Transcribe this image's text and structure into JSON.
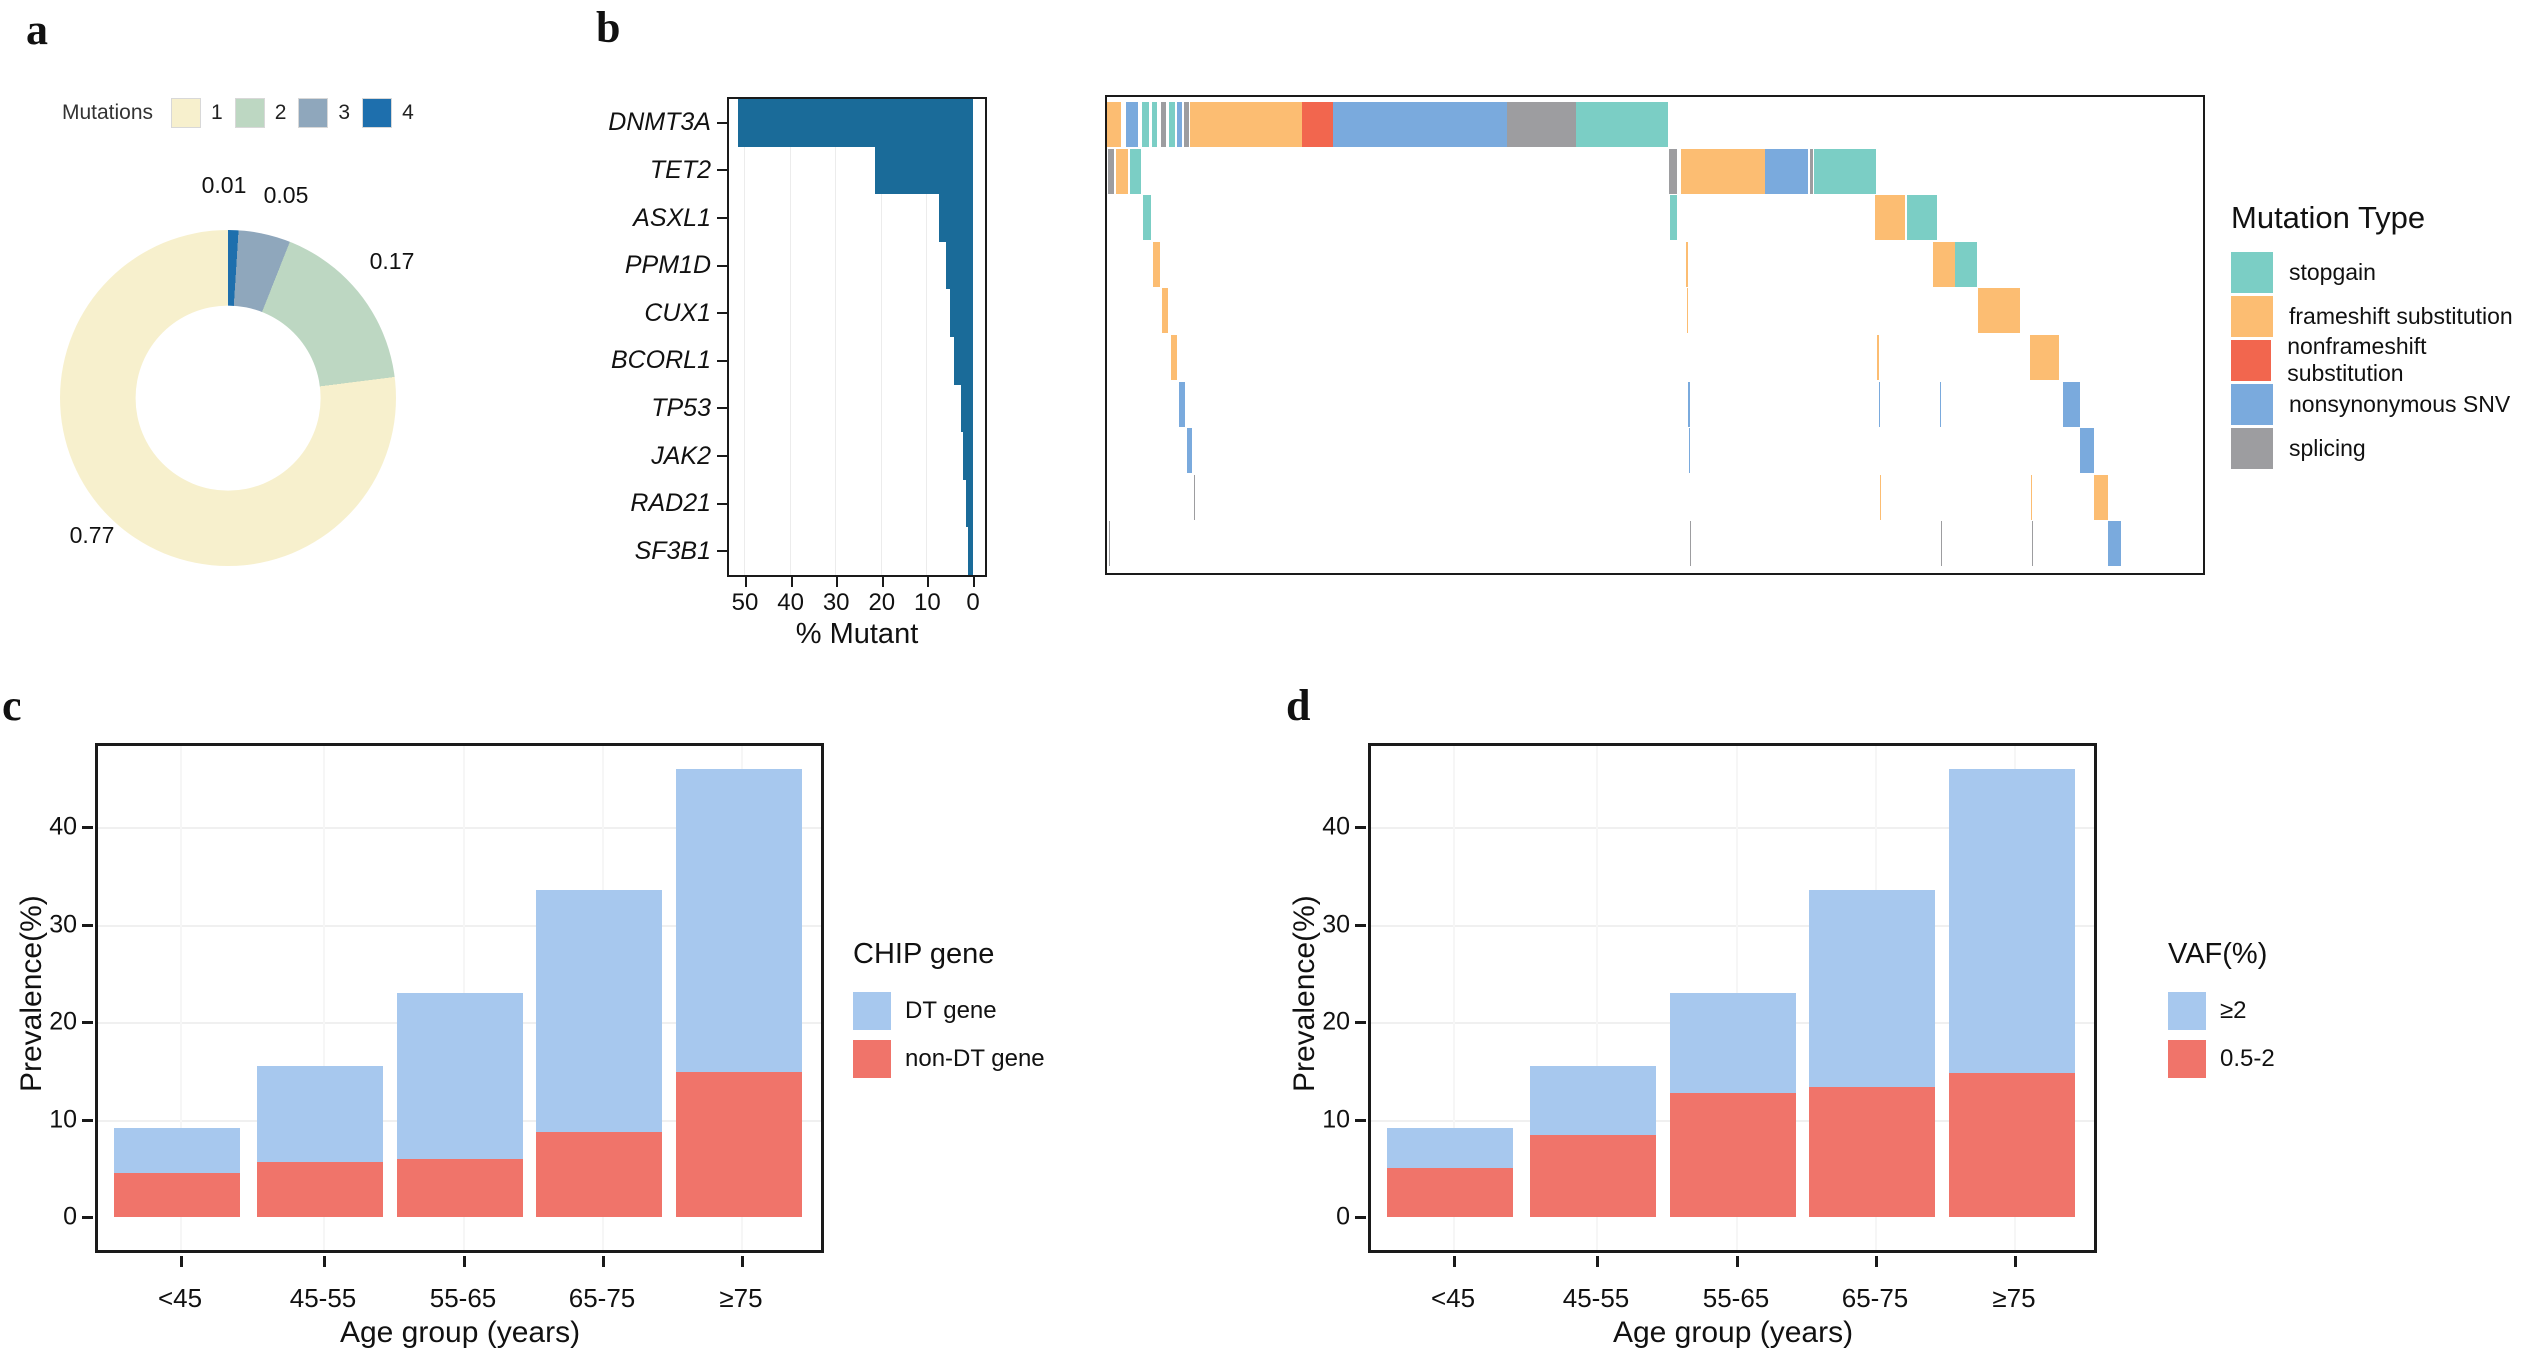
{
  "panel_labels": {
    "a": "a",
    "b": "b",
    "c": "c",
    "d": "d"
  },
  "panel_a": {
    "legend_title": "Mutations",
    "legend_items": [
      {
        "label": "1",
        "color": "#f7f0cd"
      },
      {
        "label": "2",
        "color": "#bdd7c2"
      },
      {
        "label": "3",
        "color": "#8fa7bc"
      },
      {
        "label": "4",
        "color": "#1e6fad"
      }
    ],
    "donut": {
      "slices": [
        {
          "label": "0.01",
          "value": 0.01,
          "color": "#1e6fad"
        },
        {
          "label": "0.05",
          "value": 0.05,
          "color": "#8fa7bc"
        },
        {
          "label": "0.17",
          "value": 0.17,
          "color": "#bdd7c2"
        },
        {
          "label": "0.77",
          "value": 0.77,
          "color": "#f7f0cd"
        }
      ]
    }
  },
  "panel_b": {
    "genes": [
      "DNMT3A",
      "TET2",
      "ASXL1",
      "PPM1D",
      "CUX1",
      "BCORL1",
      "TP53",
      "JAK2",
      "RAD21",
      "SF3B1"
    ],
    "pct_mutant": [
      51.5,
      21.5,
      7.5,
      6.0,
      5.0,
      4.2,
      2.7,
      2.1,
      1.5,
      1.2
    ],
    "x_ticks": [
      "50",
      "40",
      "30",
      "20",
      "10",
      "0"
    ],
    "x_tick_values": [
      50,
      40,
      30,
      20,
      10,
      0
    ],
    "x_label": "% Mutant",
    "bar_color": "#1a6b99",
    "legend_title": "Mutation Type",
    "legend_items": [
      {
        "key": "SG",
        "label": "stopgain",
        "color": "#7bcec5"
      },
      {
        "key": "FS",
        "label": "frameshift substitution",
        "color": "#fcbd72"
      },
      {
        "key": "NF",
        "label": "nonframeshift substitution",
        "color": "#f2664e"
      },
      {
        "key": "NS",
        "label": "nonsynonymous SNV",
        "color": "#7aaadd"
      },
      {
        "key": "SP",
        "label": "splicing",
        "color": "#9d9da0"
      }
    ],
    "oncoprint": {
      "colors": {
        "SG": "#7bcec5",
        "FS": "#fcbd72",
        "NF": "#f2664e",
        "NS": "#7aaadd",
        "SP": "#9d9da0"
      },
      "rows": [
        {
          "gene": "DNMT3A",
          "segs": [
            [
              0,
              1.3,
              "FS"
            ],
            [
              1.7,
              1.1,
              "NS"
            ],
            [
              3.2,
              0.6,
              "SG"
            ],
            [
              4.1,
              0.5,
              "SG"
            ],
            [
              4.9,
              0.5,
              "SP"
            ],
            [
              5.7,
              0.5,
              "SG"
            ],
            [
              6.4,
              0.4,
              "NS"
            ],
            [
              7.0,
              0.5,
              "SP"
            ],
            [
              7.6,
              10.2,
              "FS"
            ],
            [
              17.8,
              2.8,
              "NF"
            ],
            [
              20.6,
              15.9,
              "NS"
            ],
            [
              36.5,
              6.3,
              "SP"
            ],
            [
              42.8,
              8.4,
              "SG"
            ]
          ]
        },
        {
          "gene": "TET2",
          "segs": [
            [
              0.1,
              0.5,
              "SP"
            ],
            [
              0.8,
              1.1,
              "FS"
            ],
            [
              2.1,
              1.0,
              "SG"
            ],
            [
              51.3,
              0.7,
              "SP"
            ],
            [
              52.4,
              7.6,
              "FS"
            ],
            [
              60.0,
              4.0,
              "NS"
            ],
            [
              64.1,
              0.3,
              "SP"
            ],
            [
              64.5,
              5.7,
              "SG"
            ]
          ]
        },
        {
          "gene": "ASXL1",
          "segs": [
            [
              3.3,
              0.7,
              "SG"
            ],
            [
              51.4,
              0.6,
              "SG"
            ],
            [
              70.1,
              2.7,
              "FS"
            ],
            [
              73.0,
              2.7,
              "SG"
            ]
          ]
        },
        {
          "gene": "PPM1D",
          "segs": [
            [
              4.2,
              0.6,
              "FS"
            ],
            [
              52.8,
              0.2,
              "FS"
            ],
            [
              75.4,
              2.0,
              "FS"
            ],
            [
              77.4,
              2.0,
              "SG"
            ]
          ]
        },
        {
          "gene": "CUX1",
          "segs": [
            [
              5.0,
              0.6,
              "FS"
            ],
            [
              52.9,
              0.12,
              "FS"
            ],
            [
              79.5,
              3.8,
              "FS"
            ]
          ]
        },
        {
          "gene": "BCORL1",
          "segs": [
            [
              5.8,
              0.6,
              "FS"
            ],
            [
              70.3,
              0.15,
              "FS"
            ],
            [
              84.2,
              2.7,
              "FS"
            ]
          ]
        },
        {
          "gene": "TP53",
          "segs": [
            [
              6.6,
              0.5,
              "NS"
            ],
            [
              53.0,
              0.15,
              "NS"
            ],
            [
              70.4,
              0.1,
              "NS"
            ],
            [
              76.0,
              0.1,
              "NS"
            ],
            [
              87.2,
              1.6,
              "NS"
            ]
          ]
        },
        {
          "gene": "JAK2",
          "segs": [
            [
              7.3,
              0.5,
              "NS"
            ],
            [
              53.1,
              0.12,
              "NS"
            ],
            [
              88.8,
              1.3,
              "NS"
            ]
          ]
        },
        {
          "gene": "RAD21",
          "segs": [
            [
              7.9,
              0.15,
              "SP"
            ],
            [
              70.5,
              0.12,
              "FS"
            ],
            [
              84.3,
              0.1,
              "FS"
            ],
            [
              90.1,
              1.2,
              "FS"
            ]
          ]
        },
        {
          "gene": "SF3B1",
          "segs": [
            [
              0.15,
              0.12,
              "SP"
            ],
            [
              53.2,
              0.1,
              "SP"
            ],
            [
              76.1,
              0.1,
              "SP"
            ],
            [
              84.4,
              0.08,
              "SP"
            ],
            [
              91.3,
              1.2,
              "NS"
            ]
          ]
        }
      ]
    }
  },
  "panel_c": {
    "y_label": "Prevalence(%)",
    "x_label": "Age group (years)",
    "y_ticks": [
      "0",
      "10",
      "20",
      "30",
      "40"
    ],
    "categories": [
      "<45",
      "45-55",
      "55-65",
      "65-75",
      "≥75"
    ],
    "legend_title": "CHIP gene",
    "legend_items": [
      {
        "label": "DT gene",
        "color": "#a7c8ee"
      },
      {
        "label": "non-DT gene",
        "color": "#f0746a"
      }
    ],
    "bottom_series": [
      4.5,
      5.6,
      5.9,
      8.7,
      14.9
    ],
    "top_series": [
      4.6,
      9.9,
      17.1,
      24.8,
      31.1
    ]
  },
  "panel_d": {
    "y_label": "Prevalence(%)",
    "x_label": "Age group (years)",
    "y_ticks": [
      "0",
      "10",
      "20",
      "30",
      "40"
    ],
    "categories": [
      "<45",
      "45-55",
      "55-65",
      "65-75",
      "≥75"
    ],
    "legend_title": "VAF(%)",
    "legend_items": [
      {
        "label": "≥2",
        "color": "#a7c8ee"
      },
      {
        "label": "0.5-2",
        "color": "#f0746a"
      }
    ],
    "bottom_series": [
      5.0,
      8.4,
      12.7,
      13.3,
      14.8
    ],
    "top_series": [
      4.1,
      7.1,
      10.3,
      20.2,
      31.2
    ]
  },
  "chart_data": [
    {
      "type": "pie",
      "donut": true,
      "title": "",
      "legend_title": "Mutations",
      "categories": [
        "1",
        "2",
        "3",
        "4"
      ],
      "values": [
        0.77,
        0.17,
        0.05,
        0.01
      ],
      "data_labels": [
        "0.77",
        "0.17",
        "0.05",
        "0.01"
      ],
      "colors": [
        "#f7f0cd",
        "#bdd7c2",
        "#8fa7bc",
        "#1e6fad"
      ],
      "legend_position": "top",
      "start_angle_deg": 0,
      "clockwise_order_from_top": [
        "0.01",
        "0.05",
        "0.17",
        "0.77"
      ]
    },
    {
      "type": "bar",
      "orientation": "horizontal",
      "title": "",
      "categories": [
        "DNMT3A",
        "TET2",
        "ASXL1",
        "PPM1D",
        "CUX1",
        "BCORL1",
        "TP53",
        "JAK2",
        "RAD21",
        "SF3B1"
      ],
      "values": [
        51.5,
        21.5,
        7.5,
        6.0,
        5.0,
        4.2,
        2.7,
        2.1,
        1.5,
        1.2
      ],
      "xlabel": "% Mutant",
      "ylabel": "",
      "xlim": [
        55,
        0
      ],
      "x_ticks": [
        50,
        40,
        30,
        20,
        10,
        0
      ],
      "grid": false,
      "bar_color": "#1a6b99"
    },
    {
      "type": "heatmap",
      "title": "",
      "description": "oncoprint; per-gene mutation segments as [x_percent, width_percent, mutation_type]",
      "rows": [
        "DNMT3A",
        "TET2",
        "ASXL1",
        "PPM1D",
        "CUX1",
        "BCORL1",
        "TP53",
        "JAK2",
        "RAD21",
        "SF3B1"
      ],
      "legend_title": "Mutation Type",
      "legend_entries": [
        "stopgain",
        "frameshift substitution",
        "nonframeshift substitution",
        "nonsynonymous SNV",
        "splicing"
      ],
      "legend_colors": [
        "#7bcec5",
        "#fcbd72",
        "#f2664e",
        "#7aaadd",
        "#9d9da0"
      ]
    },
    {
      "type": "bar",
      "subtype": "stacked",
      "title": "",
      "categories": [
        "<45",
        "45-55",
        "55-65",
        "65-75",
        "≥75"
      ],
      "series": [
        {
          "name": "non-DT gene",
          "values": [
            4.5,
            5.6,
            5.9,
            8.7,
            14.9
          ],
          "color": "#f0746a"
        },
        {
          "name": "DT gene",
          "values": [
            4.6,
            9.9,
            17.1,
            24.8,
            31.1
          ],
          "color": "#a7c8ee"
        }
      ],
      "totals": [
        9.1,
        15.5,
        23.0,
        33.5,
        46.0
      ],
      "xlabel": "Age group (years)",
      "ylabel": "Prevalence(%)",
      "ylim": [
        0,
        48
      ],
      "y_ticks": [
        0,
        10,
        20,
        30,
        40
      ],
      "legend_title": "CHIP gene",
      "legend_position": "right",
      "grid": false
    },
    {
      "type": "bar",
      "subtype": "stacked",
      "title": "",
      "categories": [
        "<45",
        "45-55",
        "55-65",
        "65-75",
        "≥75"
      ],
      "series": [
        {
          "name": "0.5-2",
          "values": [
            5.0,
            8.4,
            12.7,
            13.3,
            14.8
          ],
          "color": "#f0746a"
        },
        {
          "name": "≥2",
          "values": [
            4.1,
            7.1,
            10.3,
            20.2,
            31.2
          ],
          "color": "#a7c8ee"
        }
      ],
      "totals": [
        9.1,
        15.5,
        23.0,
        33.5,
        46.0
      ],
      "xlabel": "Age group (years)",
      "ylabel": "Prevalence(%)",
      "ylim": [
        0,
        48
      ],
      "y_ticks": [
        0,
        10,
        20,
        30,
        40
      ],
      "legend_title": "VAF(%)",
      "legend_position": "right",
      "grid": false
    }
  ]
}
